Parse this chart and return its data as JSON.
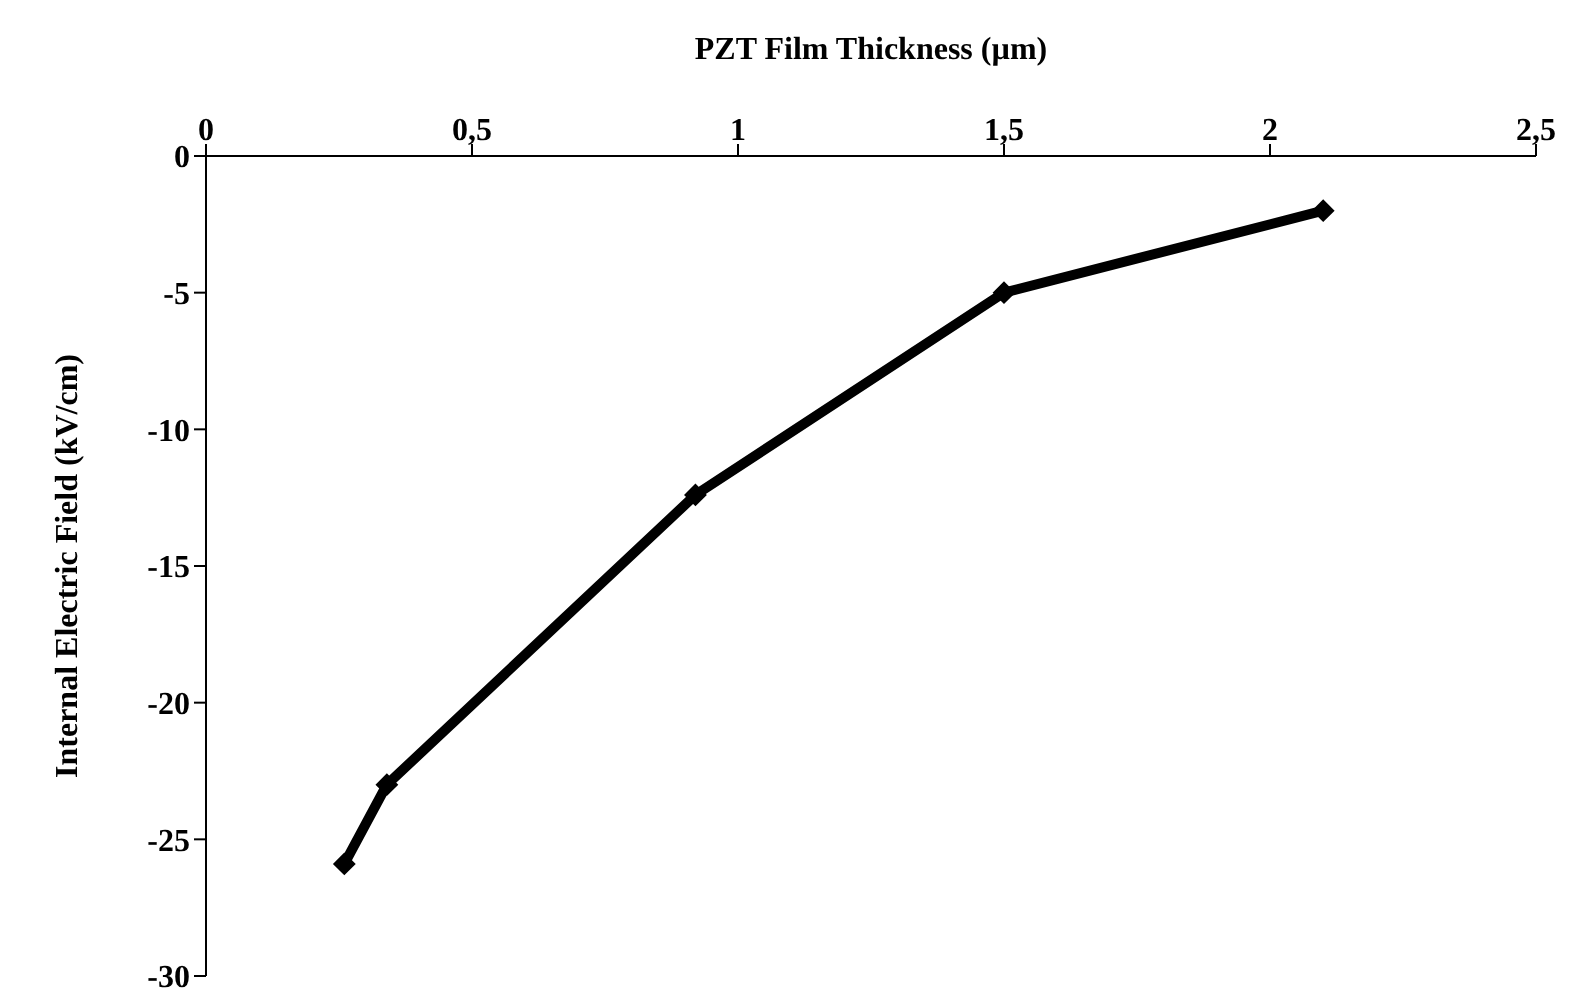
{
  "chart_data": {
    "type": "line",
    "xlabel": "PZT Film Thickness (µm)",
    "ylabel": "Internal Electric Field (kV/cm)",
    "x": [
      0.26,
      0.34,
      0.92,
      1.5,
      2.1
    ],
    "series": [
      {
        "color": "#000000",
        "values": [
          -25.9,
          -23,
          -12.4,
          -5,
          -2
        ]
      }
    ],
    "xlim": [
      0,
      2.5
    ],
    "xticks": [
      0,
      {
        "value": 0.5,
        "label": "0,5"
      },
      1,
      {
        "value": 1.5,
        "label": "1,5"
      },
      2,
      {
        "value": 2.5,
        "label": "2,5"
      }
    ],
    "ylim": [
      -30,
      0
    ],
    "yticks": [
      -30,
      -25,
      -20,
      -15,
      -10,
      -5,
      0
    ],
    "marker": "diamond",
    "line_style": "solid",
    "grid": false,
    "legend": false
  }
}
